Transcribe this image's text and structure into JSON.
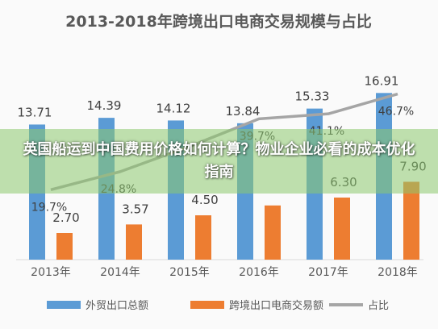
{
  "banner": {
    "text": "英国船运到中国费用价格如何计算？物业企业必看的成本优化指南"
  },
  "colors": {
    "series1": "#5B9BD5",
    "series2": "#ED7D31",
    "series3": "#A5A5A5"
  },
  "chart_data": {
    "type": "bar",
    "title": "2013-2018年跨境出口电商交易规模与占比",
    "categories": [
      "2013年",
      "2014年",
      "2015年",
      "2016年",
      "2017年",
      "2018年"
    ],
    "series": [
      {
        "name": "外贸出口总额",
        "type": "bar",
        "values": [
          13.71,
          14.39,
          14.12,
          13.84,
          15.33,
          16.91
        ],
        "labels": [
          "13.71",
          "14.39",
          "14.12",
          "13.84",
          "15.33",
          "16.91"
        ]
      },
      {
        "name": "跨境出口电商交易额",
        "type": "bar",
        "values": [
          2.7,
          3.57,
          4.5,
          5.5,
          6.3,
          7.9
        ],
        "labels": [
          "2.70",
          "3.57",
          "4.50",
          "",
          "6.30",
          "7.90"
        ]
      },
      {
        "name": "占比",
        "type": "line",
        "values": [
          19.7,
          24.8,
          31.9,
          39.7,
          41.1,
          46.7
        ],
        "labels": [
          "19.7%",
          "24.8%",
          "",
          "39.7%",
          "41.1%",
          "46.7%"
        ]
      }
    ],
    "ylim": [
      0,
      18
    ],
    "y2lim": [
      0,
      50
    ],
    "grid": false,
    "legend": "bottom"
  }
}
